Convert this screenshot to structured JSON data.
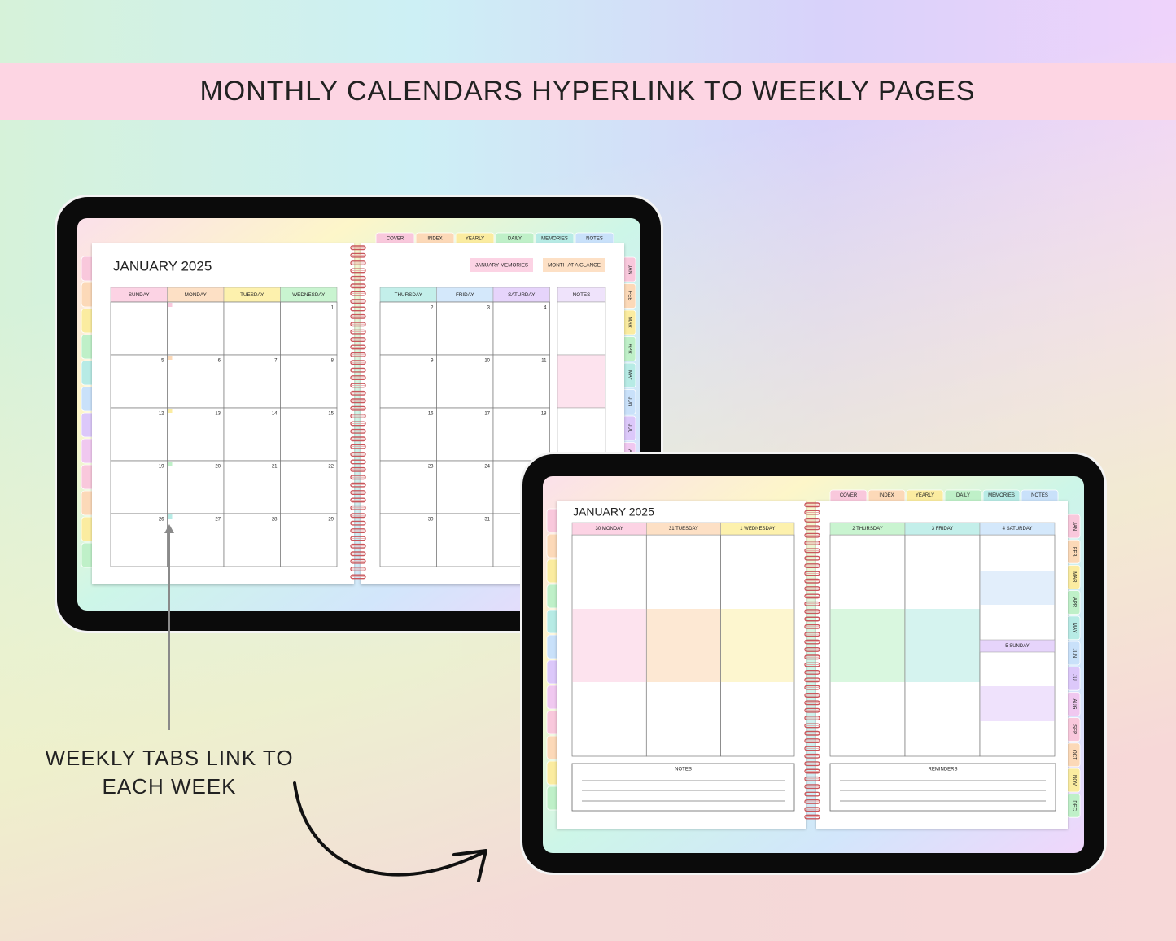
{
  "banner": {
    "title": "MONTHLY CALENDARS HYPERLINK TO WEEKLY PAGES"
  },
  "annotation": {
    "lines": [
      "WEEKLY TABS LINK TO",
      "EACH WEEK"
    ]
  },
  "monthly": {
    "title": "JANUARY 2025",
    "top_tabs": [
      "COVER",
      "INDEX",
      "YEARLY",
      "DAILY",
      "MEMORIES",
      "NOTES"
    ],
    "buttons": [
      "JANUARY MEMORIES",
      "MONTH AT A GLANCE"
    ],
    "day_headers": [
      "SUNDAY",
      "MONDAY",
      "TUESDAY",
      "WEDNESDAY",
      "THURSDAY",
      "FRIDAY",
      "SATURDAY"
    ],
    "notes_header": "NOTES",
    "weeks": [
      [
        null,
        null,
        null,
        1,
        2,
        3,
        4
      ],
      [
        5,
        6,
        7,
        8,
        9,
        10,
        11
      ],
      [
        12,
        13,
        14,
        15,
        16,
        17,
        18
      ],
      [
        19,
        20,
        21,
        22,
        23,
        24,
        null
      ],
      [
        26,
        27,
        28,
        29,
        30,
        31,
        null
      ]
    ],
    "month_tabs": [
      "JAN",
      "FEB",
      "MAR",
      "APR",
      "MAY",
      "JUN",
      "JUL",
      "AUG"
    ]
  },
  "weekly": {
    "title": "JANUARY 2025",
    "top_tabs": [
      "COVER",
      "INDEX",
      "YEARLY",
      "DAILY",
      "MEMORIES",
      "NOTES"
    ],
    "day_headers": [
      "30 MONDAY",
      "31 TUESDAY",
      "1 WEDNESDAY",
      "2 THURSDAY",
      "3 FRIDAY",
      "4 SATURDAY"
    ],
    "extra_day": "5 SUNDAY",
    "notes_header": "NOTES",
    "reminders_header": "REMINDERS",
    "month_tabs": [
      "JAN",
      "FEB",
      "MAR",
      "APR",
      "MAY",
      "JUN",
      "JUL",
      "AUG",
      "SEP",
      "OCT",
      "NOV",
      "DEC"
    ]
  }
}
